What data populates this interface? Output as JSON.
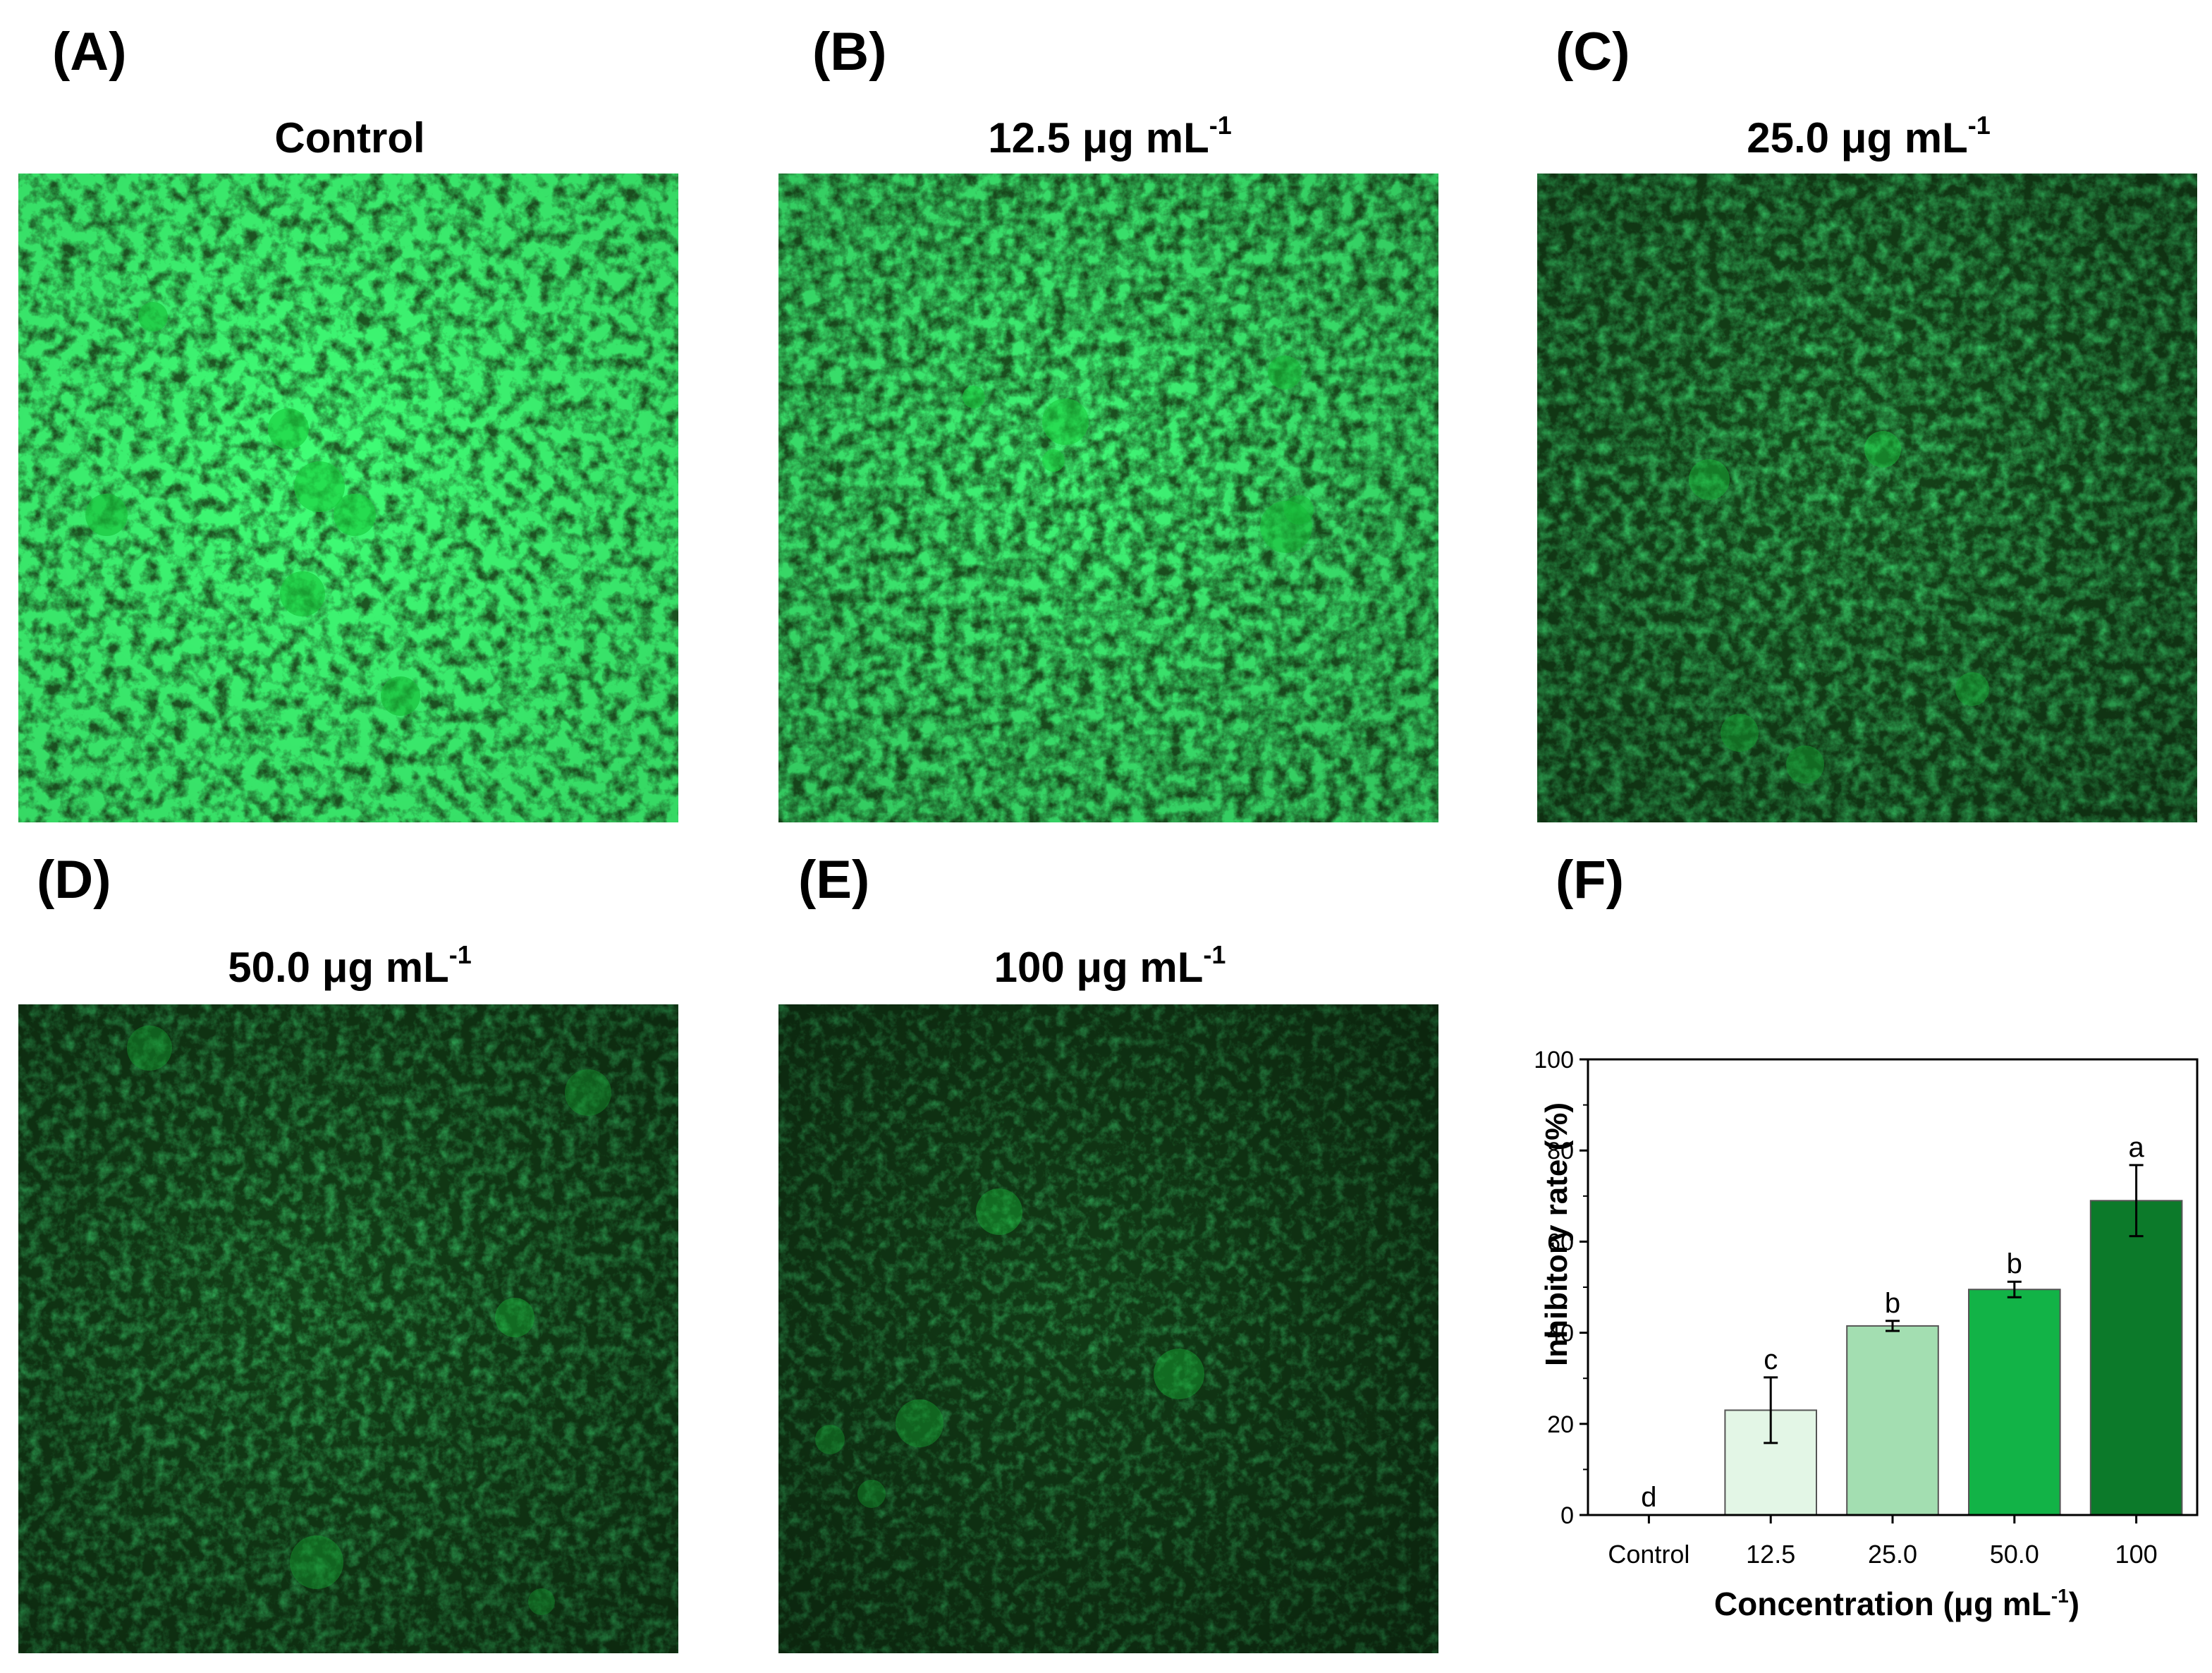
{
  "panels": [
    {
      "letter": "(A)",
      "title_main": "Control",
      "title_sup": "",
      "brightness": 1.0
    },
    {
      "letter": "(B)",
      "title_main": "12.5 μg mL",
      "title_sup": "-1",
      "brightness": 0.85
    },
    {
      "letter": "(C)",
      "title_main": "25.0 μg mL",
      "title_sup": "-1",
      "brightness": 0.55
    },
    {
      "letter": "(D)",
      "title_main": "50.0 μg mL",
      "title_sup": "-1",
      "brightness": 0.45
    },
    {
      "letter": "(E)",
      "title_main": "100 μg mL",
      "title_sup": "-1",
      "brightness": 0.38
    },
    {
      "letter": "(F)",
      "title_main": "",
      "title_sup": "",
      "brightness": 0
    }
  ],
  "colors": {
    "fluorescence": "#19d13f",
    "background_dark": "#0a3a12",
    "bars": [
      "#e3f6e6",
      "#a3deb1",
      "#12b347",
      "#0c7a2a"
    ]
  },
  "chart_data": {
    "type": "bar",
    "title": "",
    "categories": [
      "Control",
      "12.5",
      "25.0",
      "50.0",
      "100"
    ],
    "values": [
      0,
      23,
      41.5,
      49.5,
      69
    ],
    "errors": [
      0,
      7.2,
      1.1,
      1.7,
      7.8
    ],
    "significance": [
      "d",
      "c",
      "b",
      "b",
      "a"
    ],
    "xlabel_main": "Concentration (μg mL",
    "xlabel_sup": "-1",
    "xlabel_close": ")",
    "ylabel": "Inhibitory rate (%)",
    "ylim": [
      0,
      100
    ],
    "yticks": [
      0,
      20,
      40,
      60,
      80,
      100
    ],
    "grid": false,
    "legend": "none"
  }
}
